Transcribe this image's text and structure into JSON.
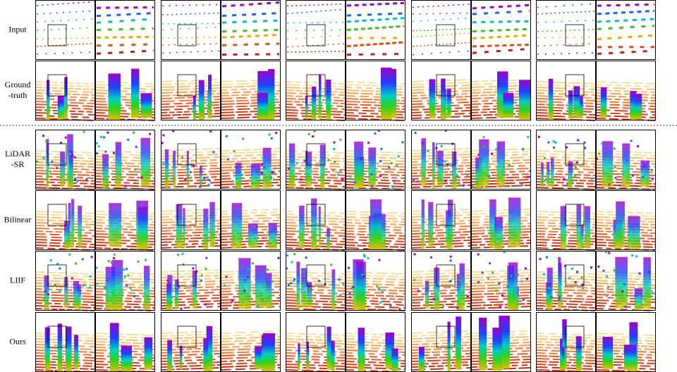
{
  "rows": [
    {
      "label": [
        "Input"
      ]
    },
    {
      "label": [
        "Ground",
        "-truth"
      ]
    },
    {
      "label": [
        "LiDAR",
        "-SR"
      ]
    },
    {
      "label": [
        "Bilinear"
      ]
    },
    {
      "label": [
        "LIIF"
      ]
    },
    {
      "label": [
        "Ours"
      ]
    }
  ]
}
